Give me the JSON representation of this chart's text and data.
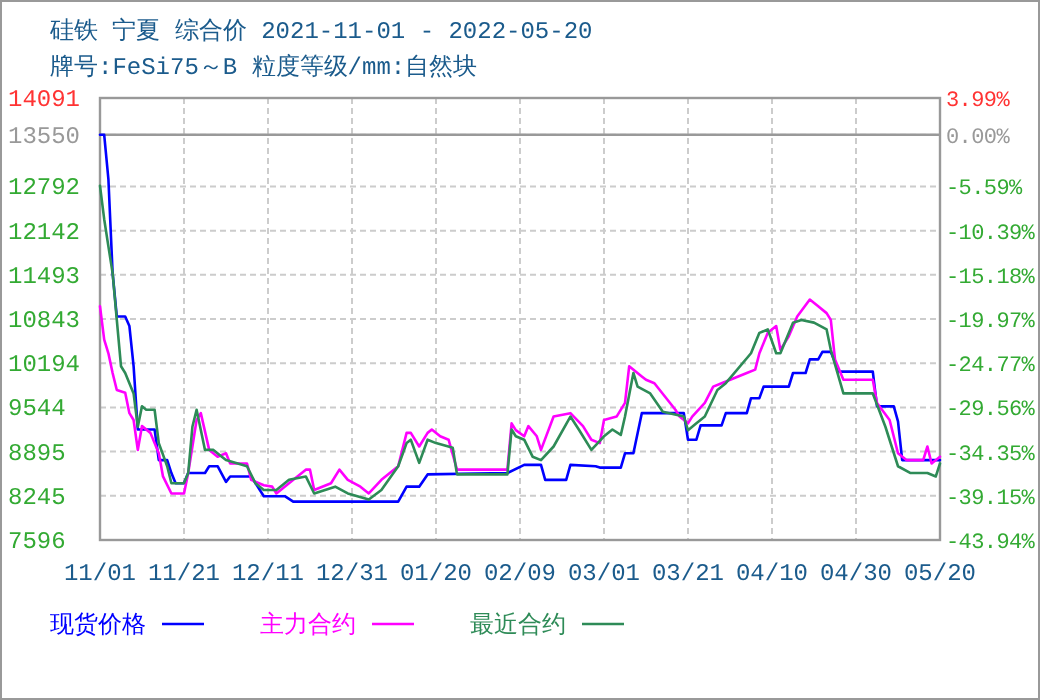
{
  "chart_data": {
    "type": "line",
    "title": "硅铁 宁夏 综合价 2021-11-01 - 2022-05-20",
    "subtitle": "牌号:FeSi75～B 粒度等级/mm:自然块",
    "xlim": [
      "2021-11-01",
      "2022-05-20"
    ],
    "xticks": [
      {
        "value": "2021-11-01",
        "label": "11/01"
      },
      {
        "value": "2021-11-21",
        "label": "11/21"
      },
      {
        "value": "2021-12-11",
        "label": "12/11"
      },
      {
        "value": "2021-12-31",
        "label": "12/31"
      },
      {
        "value": "2022-01-20",
        "label": "01/20"
      },
      {
        "value": "2022-02-09",
        "label": "02/09"
      },
      {
        "value": "2022-03-01",
        "label": "03/01"
      },
      {
        "value": "2022-03-21",
        "label": "03/21"
      },
      {
        "value": "2022-04-10",
        "label": "04/10"
      },
      {
        "value": "2022-04-30",
        "label": "04/30"
      },
      {
        "value": "2022-05-20",
        "label": "05/20"
      }
    ],
    "ylim": [
      7596,
      14091
    ],
    "yticks": [
      14091,
      13550,
      12792,
      12142,
      11493,
      10843,
      10194,
      9544,
      8895,
      8245,
      7596
    ],
    "y2lim": [
      -43.94,
      3.99
    ],
    "y2ticks": [
      {
        "value": 3.99,
        "label": "3.99%"
      },
      {
        "value": 0,
        "label": "0.00%"
      },
      {
        "value": -5.59,
        "label": "-5.59%"
      },
      {
        "value": -10.39,
        "label": "-10.39%"
      },
      {
        "value": -15.18,
        "label": "-15.18%"
      },
      {
        "value": -19.97,
        "label": "-19.97%"
      },
      {
        "value": -24.77,
        "label": "-24.77%"
      },
      {
        "value": -29.56,
        "label": "-29.56%"
      },
      {
        "value": -34.35,
        "label": "-34.35%"
      },
      {
        "value": -39.15,
        "label": "-39.15%"
      },
      {
        "value": -43.94,
        "label": "-43.94%"
      }
    ],
    "ref_lines": [
      {
        "axis": "y",
        "value": 13550,
        "color": "#999999"
      }
    ],
    "grid": true,
    "legend": "bottom",
    "marker": "none",
    "line_style": "solid",
    "series": [
      {
        "name": "现货价格",
        "color": "#0000ff",
        "x": [
          "2021-11-01",
          "2021-11-02",
          "2021-11-03",
          "2021-11-04",
          "2021-11-05",
          "2021-11-07",
          "2021-11-08",
          "2021-11-09",
          "2021-11-10",
          "2021-11-14",
          "2021-11-15",
          "2021-11-17",
          "2021-11-18",
          "2021-11-19",
          "2021-11-21",
          "2021-11-22",
          "2021-11-26",
          "2021-11-27",
          "2021-11-29",
          "2021-12-01",
          "2021-12-02",
          "2021-12-07",
          "2021-12-10",
          "2021-12-15",
          "2021-12-17",
          "2022-01-11",
          "2022-01-13",
          "2022-01-16",
          "2022-01-18",
          "2022-02-06",
          "2022-02-10",
          "2022-02-14",
          "2022-02-15",
          "2022-02-20",
          "2022-02-21",
          "2022-02-27",
          "2022-02-28",
          "2022-03-05",
          "2022-03-06",
          "2022-03-08",
          "2022-03-10",
          "2022-03-20",
          "2022-03-21",
          "2022-03-23",
          "2022-03-24",
          "2022-03-29",
          "2022-03-30",
          "2022-04-04",
          "2022-04-05",
          "2022-04-07",
          "2022-04-08",
          "2022-04-14",
          "2022-04-15",
          "2022-04-18",
          "2022-04-19",
          "2022-04-21",
          "2022-04-22",
          "2022-04-24",
          "2022-04-26",
          "2022-05-04",
          "2022-05-05",
          "2022-05-09",
          "2022-05-10",
          "2022-05-11",
          "2022-05-20"
        ],
        "values": [
          13550,
          13550,
          12900,
          11520,
          10880,
          10880,
          10740,
          10150,
          9220,
          9220,
          8770,
          8770,
          8580,
          8430,
          8430,
          8580,
          8580,
          8680,
          8680,
          8450,
          8530,
          8530,
          8240,
          8240,
          8160,
          8160,
          8380,
          8380,
          8560,
          8580,
          8700,
          8700,
          8480,
          8480,
          8700,
          8680,
          8660,
          8660,
          8870,
          8870,
          9460,
          9460,
          9070,
          9070,
          9280,
          9280,
          9460,
          9460,
          9680,
          9680,
          9850,
          9850,
          10050,
          10050,
          10250,
          10250,
          10360,
          10360,
          10070,
          10070,
          9560,
          9560,
          9340,
          8770,
          8770
        ]
      },
      {
        "name": "主力合约",
        "color": "#ff00ff",
        "x": [
          "2021-11-01",
          "2021-11-02",
          "2021-11-03",
          "2021-11-04",
          "2021-11-05",
          "2021-11-07",
          "2021-11-08",
          "2021-11-09",
          "2021-11-10",
          "2021-11-11",
          "2021-11-13",
          "2021-11-15",
          "2021-11-16",
          "2021-11-18",
          "2021-11-21",
          "2021-11-22",
          "2021-11-24",
          "2021-11-25",
          "2021-11-27",
          "2021-11-29",
          "2021-12-01",
          "2021-12-02",
          "2021-12-06",
          "2021-12-07",
          "2021-12-10",
          "2021-12-12",
          "2021-12-13",
          "2021-12-16",
          "2021-12-20",
          "2021-12-21",
          "2021-12-22",
          "2021-12-26",
          "2021-12-28",
          "2021-12-30",
          "2022-01-02",
          "2022-01-04",
          "2022-01-07",
          "2022-01-09",
          "2022-01-11",
          "2022-01-13",
          "2022-01-14",
          "2022-01-16",
          "2022-01-18",
          "2022-01-19",
          "2022-01-21",
          "2022-01-23",
          "2022-01-25",
          "2022-02-06",
          "2022-02-07",
          "2022-02-08",
          "2022-02-10",
          "2022-02-11",
          "2022-02-13",
          "2022-02-14",
          "2022-02-17",
          "2022-02-21",
          "2022-02-24",
          "2022-02-26",
          "2022-02-28",
          "2022-03-01",
          "2022-03-04",
          "2022-03-06",
          "2022-03-07",
          "2022-03-10",
          "2022-03-11",
          "2022-03-13",
          "2022-03-18",
          "2022-03-19",
          "2022-03-21",
          "2022-03-22",
          "2022-03-25",
          "2022-03-27",
          "2022-03-29",
          "2022-04-04",
          "2022-04-06",
          "2022-04-07",
          "2022-04-09",
          "2022-04-11",
          "2022-04-12",
          "2022-04-14",
          "2022-04-16",
          "2022-04-19",
          "2022-04-21",
          "2022-04-23",
          "2022-04-24",
          "2022-04-25",
          "2022-04-27",
          "2022-05-04",
          "2022-05-05",
          "2022-05-08",
          "2022-05-10",
          "2022-05-12",
          "2022-05-16",
          "2022-05-17",
          "2022-05-18",
          "2022-05-20"
        ],
        "values": [
          11030,
          10540,
          10340,
          10050,
          9800,
          9760,
          9460,
          9360,
          8920,
          9270,
          9170,
          8870,
          8530,
          8280,
          8280,
          8580,
          9360,
          9460,
          8920,
          8820,
          8870,
          8720,
          8720,
          8480,
          8400,
          8380,
          8280,
          8430,
          8630,
          8630,
          8330,
          8430,
          8630,
          8480,
          8380,
          8280,
          8480,
          8580,
          8680,
          9170,
          9170,
          8970,
          9170,
          9220,
          9120,
          9070,
          8630,
          8630,
          9310,
          9210,
          9120,
          9270,
          9120,
          8920,
          9410,
          9460,
          9270,
          9070,
          9020,
          9360,
          9410,
          9610,
          10150,
          10000,
          9950,
          9900,
          9510,
          9410,
          9310,
          9410,
          9610,
          9850,
          9900,
          10050,
          10100,
          10340,
          10640,
          10740,
          10390,
          10590,
          10880,
          11130,
          11030,
          10930,
          10830,
          10250,
          9950,
          9950,
          9610,
          9360,
          8870,
          8770,
          8770,
          8970,
          8720,
          8820
        ]
      },
      {
        "name": "最近合约",
        "color": "#2e8b57",
        "x": [
          "2021-11-01",
          "2021-11-02",
          "2021-11-03",
          "2021-11-04",
          "2021-11-05",
          "2021-11-06",
          "2021-11-07",
          "2021-11-09",
          "2021-11-10",
          "2021-11-11",
          "2021-11-12",
          "2021-11-14",
          "2021-11-15",
          "2021-11-17",
          "2021-11-18",
          "2021-11-21",
          "2021-11-22",
          "2021-11-23",
          "2021-11-24",
          "2021-11-26",
          "2021-11-28",
          "2021-11-30",
          "2021-12-01",
          "2021-12-06",
          "2021-12-08",
          "2021-12-10",
          "2021-12-13",
          "2021-12-16",
          "2021-12-20",
          "2021-12-22",
          "2021-12-27",
          "2021-12-30",
          "2022-01-04",
          "2022-01-07",
          "2022-01-11",
          "2022-01-13",
          "2022-01-14",
          "2022-01-16",
          "2022-01-18",
          "2022-01-20",
          "2022-01-24",
          "2022-01-25",
          "2022-02-06",
          "2022-02-07",
          "2022-02-08",
          "2022-02-10",
          "2022-02-12",
          "2022-02-14",
          "2022-02-17",
          "2022-02-21",
          "2022-02-23",
          "2022-02-26",
          "2022-03-01",
          "2022-03-03",
          "2022-03-05",
          "2022-03-06",
          "2022-03-08",
          "2022-03-09",
          "2022-03-12",
          "2022-03-15",
          "2022-03-20",
          "2022-03-21",
          "2022-03-23",
          "2022-03-25",
          "2022-03-28",
          "2022-03-30",
          "2022-04-05",
          "2022-04-07",
          "2022-04-09",
          "2022-04-11",
          "2022-04-12",
          "2022-04-15",
          "2022-04-17",
          "2022-04-20",
          "2022-04-23",
          "2022-04-24",
          "2022-04-27",
          "2022-04-30",
          "2022-05-04",
          "2022-05-07",
          "2022-05-10",
          "2022-05-13",
          "2022-05-17",
          "2022-05-19",
          "2022-05-20"
        ],
        "values": [
          12800,
          12310,
          11910,
          11520,
          10830,
          10150,
          10050,
          9750,
          9260,
          9560,
          9510,
          9510,
          9020,
          8680,
          8430,
          8430,
          8580,
          9260,
          9510,
          8920,
          8920,
          8820,
          8770,
          8680,
          8430,
          8330,
          8330,
          8480,
          8530,
          8280,
          8380,
          8280,
          8190,
          8330,
          8680,
          9020,
          9070,
          8730,
          9070,
          9020,
          8950,
          8560,
          8560,
          9220,
          9120,
          9070,
          8820,
          8770,
          8970,
          9410,
          9220,
          8920,
          9120,
          9220,
          9140,
          9410,
          10050,
          9850,
          9750,
          9480,
          9410,
          9210,
          9310,
          9410,
          9800,
          9900,
          10340,
          10640,
          10690,
          10340,
          10340,
          10790,
          10830,
          10790,
          10690,
          10390,
          9750,
          9750,
          9750,
          9260,
          8680,
          8580,
          8580,
          8530,
          8720
        ]
      }
    ]
  }
}
